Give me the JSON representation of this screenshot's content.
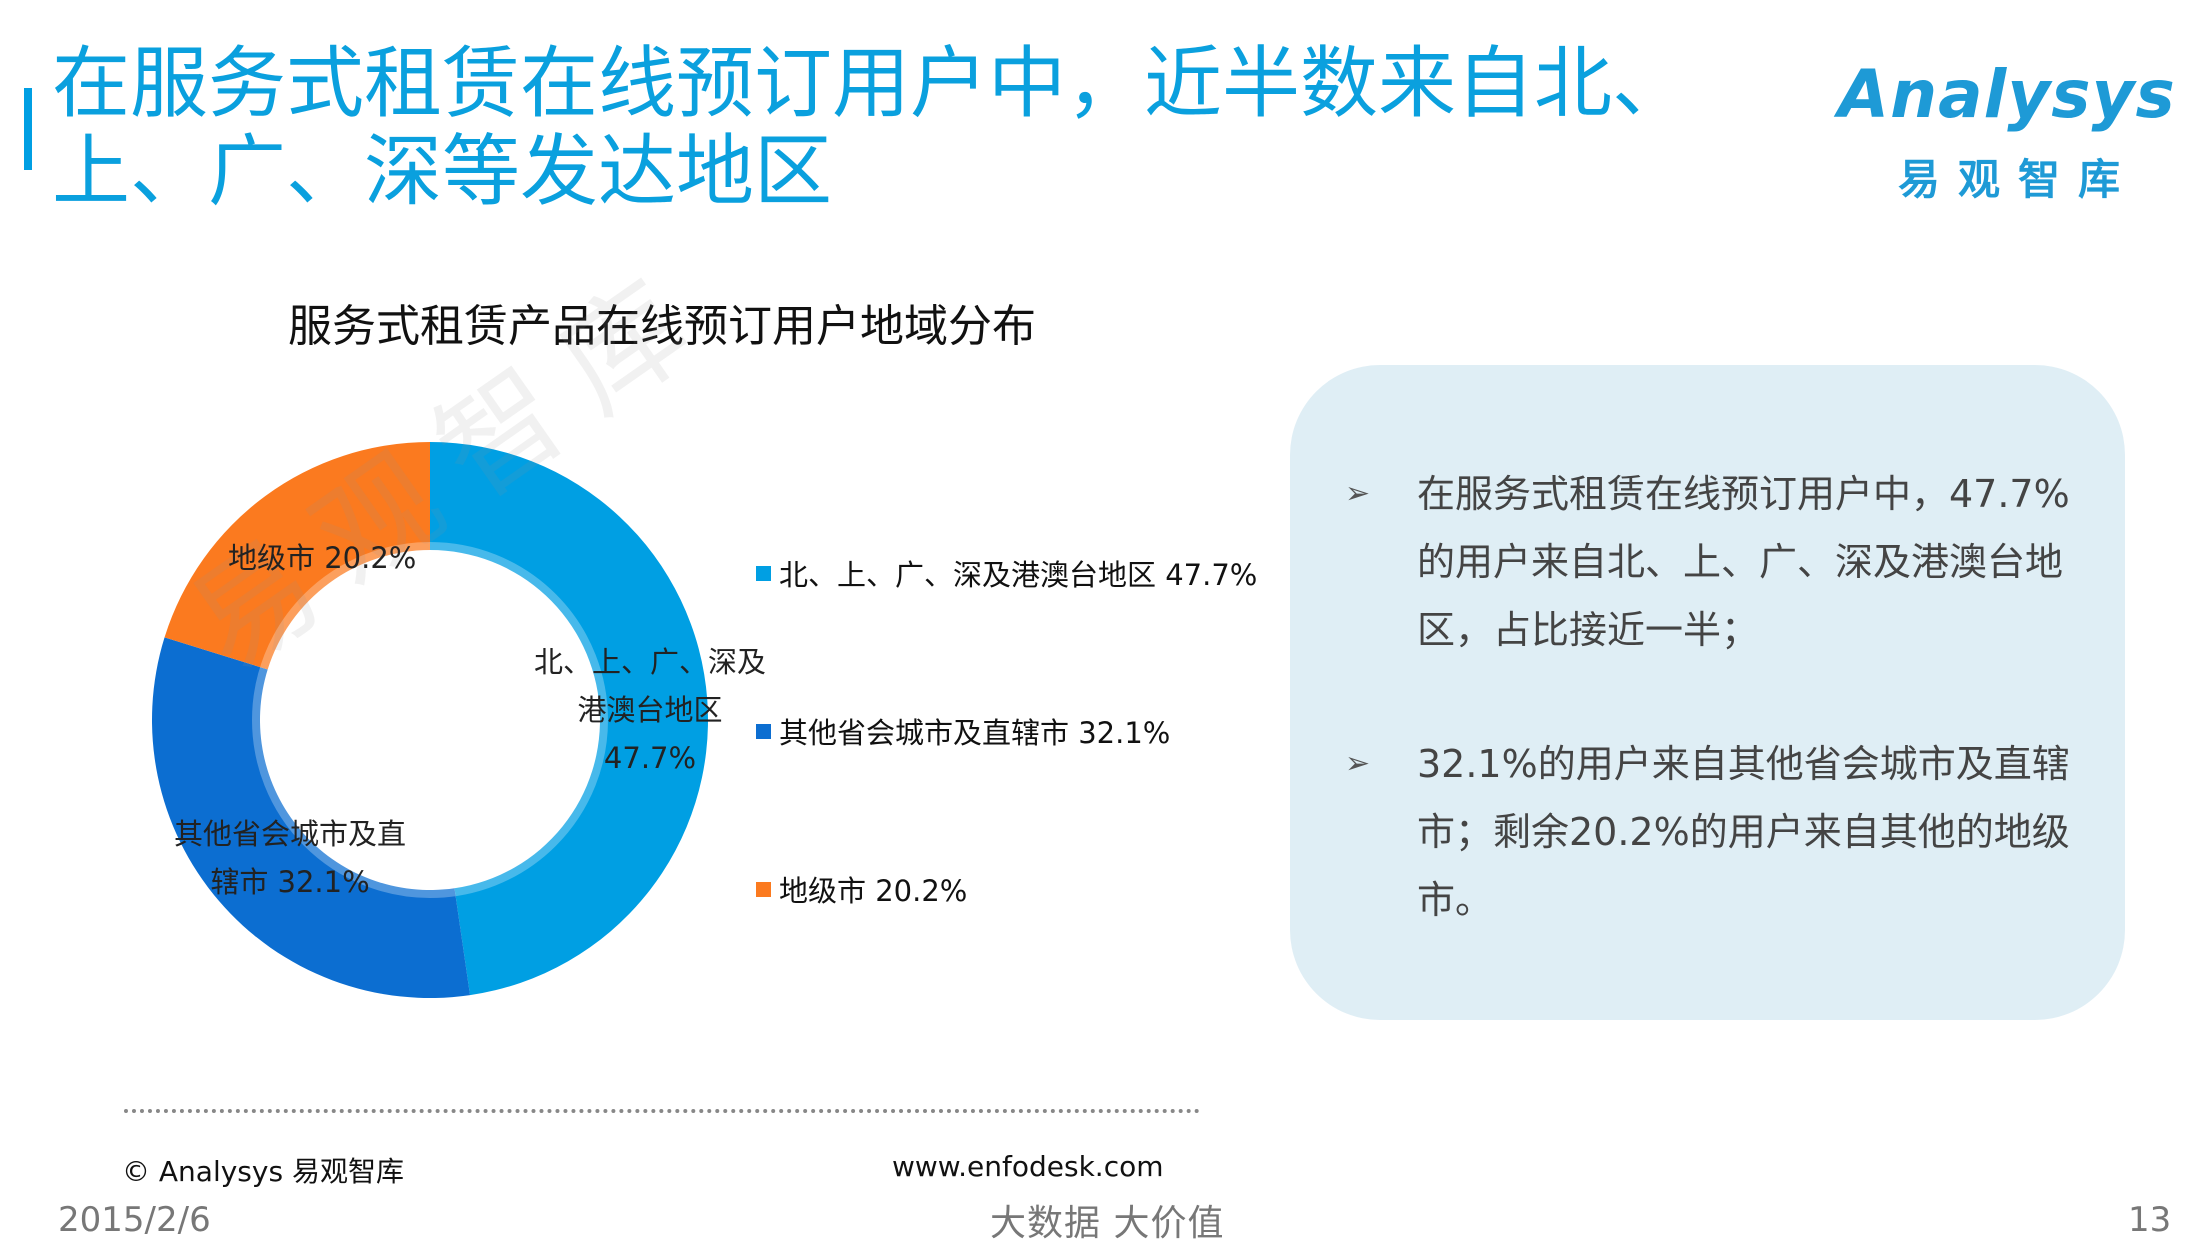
{
  "slide": {
    "title": "在服务式租赁在线预订用户中，近半数来自北、上、广、深等发达地区",
    "logo_text": "Analysys",
    "logo_sub": "易观智库",
    "watermark": "易观智库"
  },
  "chart_data": {
    "type": "pie",
    "title": "服务式租赁产品在线预订用户地域分布",
    "donut": true,
    "legend_position": "right",
    "slices": [
      {
        "name": "北、上、广、深及港澳台地区",
        "value": 47.7,
        "label": "47.7%",
        "slice_label_lines": [
          "北、上、广、深及",
          "港澳台地区",
          "47.7%"
        ],
        "color": "#009fe3"
      },
      {
        "name": "其他省会城市及直辖市",
        "value": 32.1,
        "label": "32.1%",
        "slice_label_lines": [
          "其他省会城市及直",
          "辖市 32.1%"
        ],
        "color": "#0c6ed1"
      },
      {
        "name": "地级市",
        "value": 20.2,
        "label": "20.2%",
        "slice_label_lines": [
          "地级市 20.2%"
        ],
        "color": "#fb7a1f"
      }
    ],
    "legend": [
      "北、上、广、深及港澳台地区 47.7%",
      "其他省会城市及直辖市 32.1%",
      "地级市 20.2%"
    ]
  },
  "callout": {
    "arrow": "➢",
    "bullets": [
      "在服务式租赁在线预订用户中，47.7%的用户来自北、上、广、深及港澳台地区，占比接近一半；",
      "32.1%的用户来自其他省会城市及直辖市；剩余20.2%的用户来自其他的地级市。"
    ]
  },
  "footer": {
    "copyright": "© Analysys 易观智库",
    "url": "www.enfodesk.com",
    "date": "2015/2/6",
    "slogan": "大数据   大价值",
    "page": "13"
  }
}
